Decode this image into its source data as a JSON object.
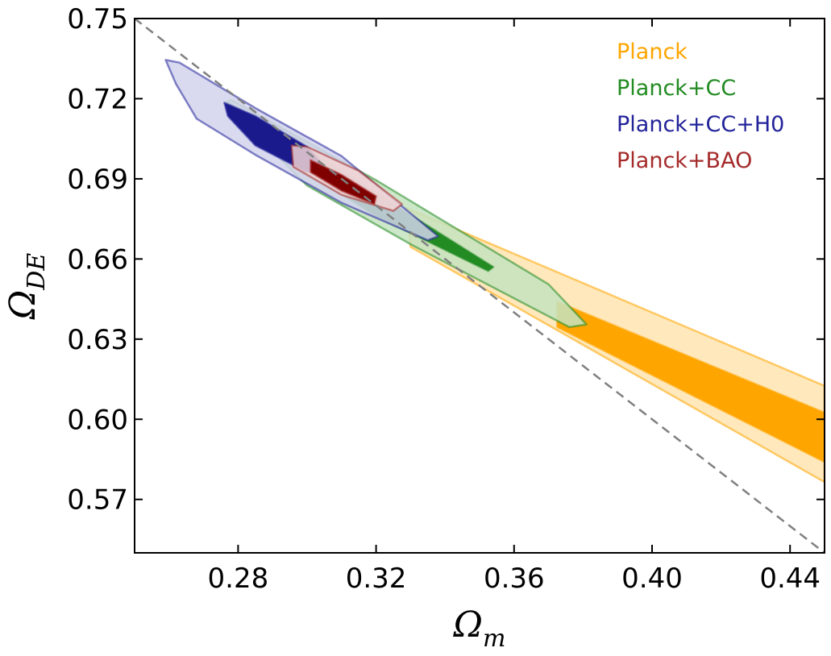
{
  "chart_data": {
    "type": "contour",
    "title": "",
    "xlabel": {
      "symbol": "Ω",
      "subscript": "m"
    },
    "ylabel": {
      "symbol": "Ω",
      "subscript": "DE"
    },
    "xlim": [
      0.25,
      0.45
    ],
    "ylim": [
      0.55,
      0.75
    ],
    "x_ticks": [
      "0.28",
      "0.32",
      "0.36",
      "0.40",
      "0.44"
    ],
    "y_ticks": [
      "0.57",
      "0.60",
      "0.63",
      "0.66",
      "0.69",
      "0.72",
      "0.75"
    ],
    "grid": false,
    "legend_position": "top-right",
    "reference_line": {
      "style": "dashed",
      "color": "#808080",
      "points": [
        [
          0.25,
          0.75
        ],
        [
          0.45,
          0.55
        ]
      ]
    },
    "series": [
      {
        "name": "Planck",
        "color": "#ffa500",
        "contours": [
          {
            "level": "outer",
            "fill": "#ffe4b0",
            "points": [
              [
                0.329,
                0.679
              ],
              [
                0.45,
                0.6125
              ],
              [
                0.45,
                0.5765
              ],
              [
                0.33,
                0.6645
              ]
            ]
          },
          {
            "level": "inner",
            "fill": "#ffa500",
            "points": [
              [
                0.3725,
                0.644
              ],
              [
                0.45,
                0.6025
              ],
              [
                0.45,
                0.584
              ],
              [
                0.3725,
                0.6345
              ]
            ]
          }
        ]
      },
      {
        "name": "Planck+CC",
        "color": "#228b22",
        "contours": [
          {
            "level": "outer",
            "fill": "#c4e3c0",
            "points": [
              [
                0.276,
                0.7185
              ],
              [
                0.278,
                0.7195
              ],
              [
                0.32,
                0.6895
              ],
              [
                0.37,
                0.6505
              ],
              [
                0.381,
                0.6355
              ],
              [
                0.376,
                0.6345
              ],
              [
                0.33,
                0.6655
              ],
              [
                0.3,
                0.6875
              ]
            ]
          },
          {
            "level": "inner",
            "fill": "#228b22",
            "points": [
              [
                0.277,
                0.7185
              ],
              [
                0.3,
                0.7015
              ],
              [
                0.33,
                0.6765
              ],
              [
                0.354,
                0.657
              ],
              [
                0.3525,
                0.6555
              ],
              [
                0.32,
                0.676
              ],
              [
                0.295,
                0.6965
              ]
            ]
          }
        ]
      },
      {
        "name": "Planck+CC+H0",
        "color": "#22229a",
        "contours": [
          {
            "level": "outer",
            "fill": "#d2d4ec",
            "points": [
              [
                0.259,
                0.7345
              ],
              [
                0.263,
                0.7335
              ],
              [
                0.285,
                0.7165
              ],
              [
                0.31,
                0.6985
              ],
              [
                0.338,
                0.6685
              ],
              [
                0.335,
                0.667
              ],
              [
                0.31,
                0.681
              ],
              [
                0.285,
                0.699
              ],
              [
                0.268,
                0.7125
              ],
              [
                0.262,
                0.7255
              ]
            ]
          },
          {
            "level": "inner",
            "fill": "#1a1a8c",
            "points": [
              [
                0.276,
                0.7185
              ],
              [
                0.285,
                0.7135
              ],
              [
                0.3,
                0.702
              ],
              [
                0.305,
                0.6945
              ],
              [
                0.3,
                0.6925
              ],
              [
                0.285,
                0.7025
              ],
              [
                0.277,
                0.7135
              ]
            ]
          }
        ]
      },
      {
        "name": "Planck+BAO",
        "color": "#a52a2a",
        "contours": [
          {
            "level": "outer",
            "fill": "#f1d3d3",
            "points": [
              [
                0.2955,
                0.7025
              ],
              [
                0.3,
                0.702
              ],
              [
                0.315,
                0.693
              ],
              [
                0.3275,
                0.6805
              ],
              [
                0.325,
                0.678
              ],
              [
                0.31,
                0.684
              ],
              [
                0.296,
                0.6945
              ]
            ]
          },
          {
            "level": "inner",
            "fill": "#800000",
            "points": [
              [
                0.301,
                0.697
              ],
              [
                0.31,
                0.6915
              ],
              [
                0.32,
                0.6835
              ],
              [
                0.3195,
                0.6805
              ],
              [
                0.31,
                0.6855
              ],
              [
                0.301,
                0.6925
              ]
            ]
          }
        ]
      }
    ]
  }
}
